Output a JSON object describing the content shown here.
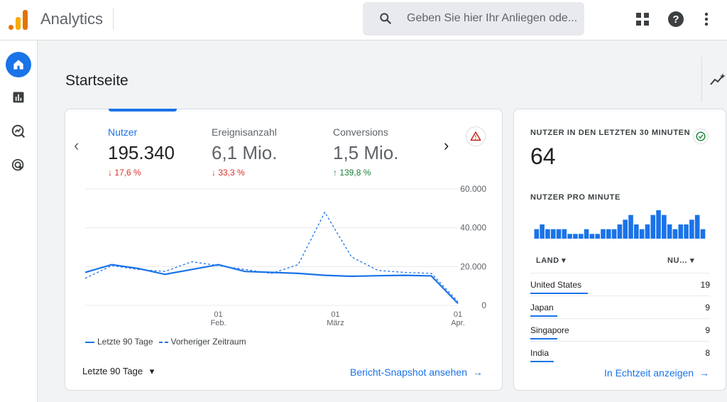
{
  "app": {
    "title": "Analytics"
  },
  "search": {
    "placeholder": "Geben Sie hier Ihr Anliegen ode..."
  },
  "page": {
    "title": "Startseite"
  },
  "overview": {
    "metrics": [
      {
        "label": "Nutzer",
        "value": "195.340",
        "delta": "↓ 17,6 %",
        "trend": "down"
      },
      {
        "label": "Ereignisanzahl",
        "value": "6,1 Mio.",
        "delta": "↓ 33,3 %",
        "trend": "down"
      },
      {
        "label": "Conversions",
        "value": "1,5 Mio.",
        "delta": "↑ 139,8 %",
        "trend": "up"
      }
    ],
    "legend": {
      "current": "Letzte 90 Tage",
      "previous": "Vorheriger Zeitraum"
    },
    "range": "Letzte 90 Tage",
    "link": "Bericht-Snapshot ansehen"
  },
  "chart_data": {
    "type": "line",
    "x": [
      1,
      2,
      3,
      4,
      5,
      6,
      7,
      8,
      9,
      10,
      11,
      12,
      13,
      14,
      15
    ],
    "x_tick_labels": [
      {
        "x": 6,
        "day": "01",
        "month": "Feb."
      },
      {
        "x": 10.4,
        "day": "01",
        "month": "März"
      },
      {
        "x": 15,
        "day": "01",
        "month": "Apr."
      }
    ],
    "y_tick_labels": [
      "60.000",
      "40.000",
      "20.000",
      "0"
    ],
    "ylim": [
      0,
      60000
    ],
    "series": [
      {
        "name": "Letzte 90 Tage",
        "style": "solid",
        "values": [
          17000,
          21000,
          19000,
          16000,
          18500,
          21000,
          17500,
          17000,
          16500,
          15500,
          15000,
          15300,
          15500,
          15200,
          1000
        ]
      },
      {
        "name": "Vorheriger Zeitraum",
        "style": "dashed",
        "values": [
          14000,
          20500,
          18500,
          17500,
          22500,
          20500,
          18500,
          16500,
          21000,
          48000,
          25000,
          18000,
          17000,
          16500,
          2000
        ]
      }
    ],
    "colors": {
      "line": "#1a73e8",
      "grid": "#e8eaed",
      "axis_text": "#5f6368"
    }
  },
  "realtime": {
    "title": "NUTZER IN DEN LETZTEN 30 MINUTEN",
    "value": "64",
    "per_minute_label": "NUTZER PRO MINUTE",
    "per_minute_values": [
      2,
      3,
      2,
      2,
      2,
      2,
      1,
      1,
      1,
      2,
      1,
      1,
      2,
      2,
      2,
      3,
      4,
      5,
      3,
      2,
      3,
      5,
      6,
      5,
      3,
      2,
      3,
      3,
      4,
      5,
      2
    ],
    "header_country": "LAND ▾",
    "header_users": "NU… ▾",
    "rows": [
      {
        "country": "United States",
        "users": "19",
        "share": 0.32
      },
      {
        "country": "Japan",
        "users": "9",
        "share": 0.15
      },
      {
        "country": "Singapore",
        "users": "9",
        "share": 0.15
      },
      {
        "country": "India",
        "users": "8",
        "share": 0.13
      }
    ],
    "link": "In Echtzeit anzeigen"
  }
}
